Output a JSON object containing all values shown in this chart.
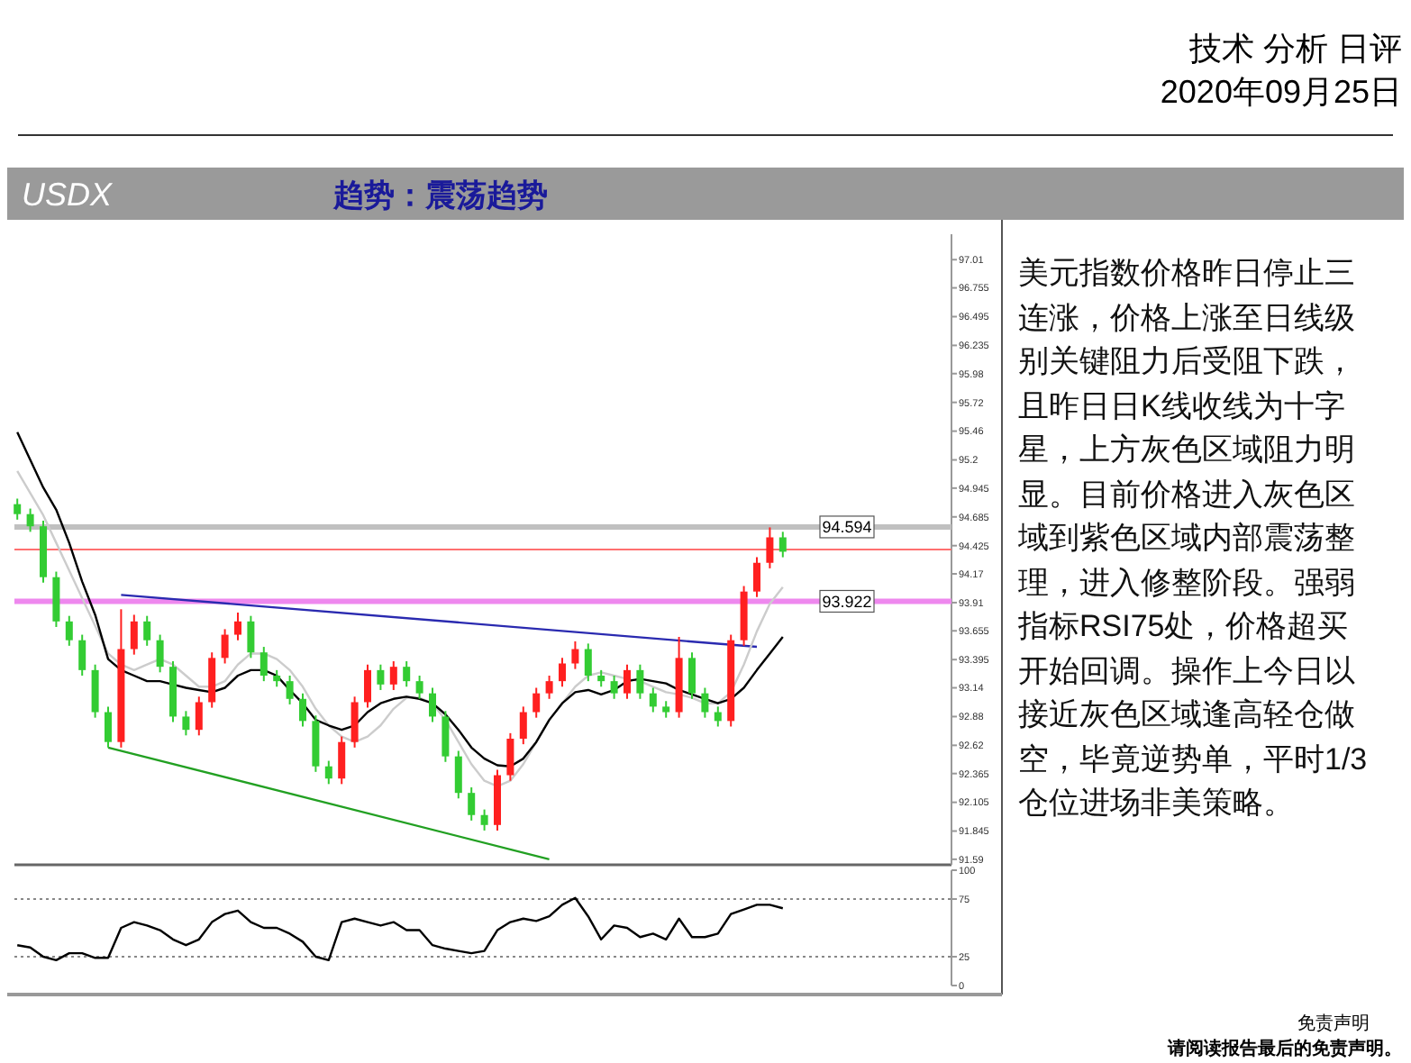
{
  "chart_data": [
    {
      "type": "candlestick",
      "title": "USDX",
      "subtitle": "趋势：震荡趋势",
      "annotations": [
        "技术 分析 日评",
        "2020年09月25日",
        "免责声明",
        "请阅读报告最后的免责声明。"
      ],
      "categories": [
        null,
        null,
        null,
        null,
        null,
        null,
        null,
        null,
        null,
        null,
        null,
        null,
        null,
        null,
        null,
        null,
        null,
        null,
        null,
        null,
        null,
        null,
        null,
        null,
        null,
        null,
        null,
        null,
        null,
        null,
        null,
        null,
        null,
        null,
        null,
        null,
        null,
        null,
        null,
        null,
        null,
        null,
        null,
        null,
        null,
        null,
        null,
        null,
        null,
        null,
        null,
        null,
        null,
        null,
        null,
        null,
        null,
        null,
        null,
        null
      ],
      "ohlc": [
        [
          94.8,
          94.85,
          94.66,
          94.71
        ],
        [
          94.71,
          94.76,
          94.55,
          94.6
        ],
        [
          94.6,
          94.65,
          94.09,
          94.14
        ],
        [
          94.14,
          94.19,
          93.69,
          93.74
        ],
        [
          93.74,
          93.79,
          93.52,
          93.57
        ],
        [
          93.57,
          93.62,
          93.25,
          93.3
        ],
        [
          93.3,
          93.35,
          92.87,
          92.92
        ],
        [
          92.92,
          92.97,
          92.6,
          92.65
        ],
        [
          92.65,
          93.85,
          92.6,
          93.49
        ],
        [
          93.49,
          93.8,
          93.44,
          93.74
        ],
        [
          93.74,
          93.79,
          93.52,
          93.57
        ],
        [
          93.57,
          93.62,
          93.28,
          93.33
        ],
        [
          93.33,
          93.38,
          92.83,
          92.88
        ],
        [
          92.88,
          92.93,
          92.71,
          92.76
        ],
        [
          92.76,
          93.06,
          92.71,
          93.01
        ],
        [
          93.01,
          93.46,
          92.96,
          93.41
        ],
        [
          93.41,
          93.67,
          93.36,
          93.62
        ],
        [
          93.62,
          93.82,
          93.57,
          93.74
        ],
        [
          93.74,
          93.79,
          93.41,
          93.46
        ],
        [
          93.46,
          93.51,
          93.2,
          93.25
        ],
        [
          93.25,
          93.3,
          93.15,
          93.2
        ],
        [
          93.2,
          93.25,
          92.99,
          93.04
        ],
        [
          93.04,
          93.09,
          92.79,
          92.84
        ],
        [
          92.84,
          92.89,
          92.38,
          92.43
        ],
        [
          92.43,
          92.48,
          92.27,
          92.32
        ],
        [
          92.32,
          92.7,
          92.27,
          92.65
        ],
        [
          92.65,
          93.06,
          92.6,
          93.01
        ],
        [
          93.01,
          93.35,
          92.96,
          93.3
        ],
        [
          93.3,
          93.35,
          93.12,
          93.17
        ],
        [
          93.17,
          93.38,
          93.12,
          93.33
        ],
        [
          93.33,
          93.38,
          93.15,
          93.2
        ],
        [
          93.2,
          93.25,
          93.04,
          93.09
        ],
        [
          93.09,
          93.14,
          92.83,
          92.88
        ],
        [
          92.88,
          92.93,
          92.47,
          92.52
        ],
        [
          92.52,
          92.57,
          92.14,
          92.19
        ],
        [
          92.19,
          92.24,
          91.94,
          91.99
        ],
        [
          91.99,
          92.04,
          91.85,
          91.9
        ],
        [
          91.9,
          92.4,
          91.85,
          92.35
        ],
        [
          92.35,
          92.73,
          92.3,
          92.68
        ],
        [
          92.68,
          92.97,
          92.63,
          92.92
        ],
        [
          92.92,
          93.14,
          92.87,
          93.09
        ],
        [
          93.09,
          93.25,
          93.04,
          93.2
        ],
        [
          93.2,
          93.41,
          93.15,
          93.36
        ],
        [
          93.36,
          93.56,
          93.31,
          93.49
        ],
        [
          93.49,
          93.54,
          93.2,
          93.25
        ],
        [
          93.25,
          93.3,
          93.15,
          93.2
        ],
        [
          93.2,
          93.25,
          93.04,
          93.09
        ],
        [
          93.09,
          93.35,
          93.04,
          93.3
        ],
        [
          93.3,
          93.35,
          93.04,
          93.09
        ],
        [
          93.09,
          93.14,
          92.92,
          92.97
        ],
        [
          92.97,
          93.02,
          92.87,
          92.92
        ],
        [
          92.92,
          93.6,
          92.87,
          93.41
        ],
        [
          93.41,
          93.46,
          93.04,
          93.09
        ],
        [
          93.09,
          93.14,
          92.87,
          92.92
        ],
        [
          92.92,
          92.97,
          92.79,
          92.84
        ],
        [
          92.84,
          93.62,
          92.79,
          93.57
        ],
        [
          93.57,
          94.06,
          93.52,
          94.01
        ],
        [
          94.01,
          94.32,
          93.96,
          94.27
        ],
        [
          94.27,
          94.59,
          94.22,
          94.5
        ],
        [
          94.5,
          94.55,
          94.32,
          94.37
        ]
      ],
      "colors": [
        "#33cc33",
        "#33cc33",
        "#33cc33",
        "#33cc33",
        "#33cc33",
        "#33cc33",
        "#33cc33",
        "#33cc33",
        "#ff2020",
        "#ff2020",
        "#33cc33",
        "#33cc33",
        "#33cc33",
        "#33cc33",
        "#ff2020",
        "#ff2020",
        "#ff2020",
        "#ff2020",
        "#33cc33",
        "#33cc33",
        "#33cc33",
        "#33cc33",
        "#33cc33",
        "#33cc33",
        "#33cc33",
        "#ff2020",
        "#ff2020",
        "#ff2020",
        "#33cc33",
        "#ff2020",
        "#33cc33",
        "#33cc33",
        "#33cc33",
        "#33cc33",
        "#33cc33",
        "#33cc33",
        "#33cc33",
        "#ff2020",
        "#ff2020",
        "#ff2020",
        "#ff2020",
        "#ff2020",
        "#ff2020",
        "#ff2020",
        "#33cc33",
        "#33cc33",
        "#33cc33",
        "#ff2020",
        "#33cc33",
        "#33cc33",
        "#33cc33",
        "#ff2020",
        "#33cc33",
        "#33cc33",
        "#33cc33",
        "#ff2020",
        "#ff2020",
        "#ff2020",
        "#ff2020",
        "#33cc33"
      ],
      "series": [
        {
          "type": "line",
          "color": "#000000",
          "values": [
            95.45,
            95.2,
            94.95,
            94.75,
            94.45,
            94.1,
            93.8,
            93.4,
            93.3,
            93.25,
            93.2,
            93.2,
            93.17,
            93.14,
            93.12,
            93.1,
            93.14,
            93.25,
            93.3,
            93.3,
            93.25,
            93.12,
            93.0,
            92.85,
            92.8,
            92.76,
            92.8,
            92.92,
            93.0,
            93.04,
            93.06,
            93.04,
            93.0,
            92.9,
            92.76,
            92.6,
            92.5,
            92.44,
            92.43,
            92.5,
            92.65,
            92.85,
            93.0,
            93.1,
            93.12,
            93.08,
            93.12,
            93.2,
            93.22,
            93.2,
            93.18,
            93.12,
            93.08,
            93.04,
            93.0,
            93.04,
            93.14,
            93.3,
            93.45,
            93.6
          ]
        },
        {
          "type": "line",
          "color": "#cccccc",
          "values": [
            95.1,
            94.9,
            94.7,
            94.45,
            94.2,
            93.95,
            93.7,
            93.45,
            93.35,
            93.3,
            93.35,
            93.4,
            93.35,
            93.25,
            93.15,
            93.15,
            93.2,
            93.35,
            93.45,
            93.45,
            93.4,
            93.3,
            93.15,
            92.95,
            92.8,
            92.7,
            92.65,
            92.7,
            92.8,
            92.95,
            93.05,
            93.05,
            93.0,
            92.85,
            92.65,
            92.45,
            92.3,
            92.25,
            92.3,
            92.45,
            92.65,
            92.85,
            93.0,
            93.15,
            93.25,
            93.28,
            93.25,
            93.22,
            93.2,
            93.15,
            93.1,
            93.08,
            93.05,
            93.0,
            93.0,
            93.1,
            93.35,
            93.65,
            93.9,
            94.05
          ]
        },
        {
          "type": "line",
          "color": "#2a2ab0",
          "values": [
            null,
            null,
            null,
            null,
            null,
            null,
            null,
            null,
            93.98,
            null,
            null,
            null,
            null,
            null,
            null,
            null,
            null,
            null,
            null,
            null,
            null,
            null,
            null,
            null,
            null,
            null,
            null,
            null,
            null,
            null,
            null,
            null,
            null,
            null,
            null,
            null,
            null,
            null,
            null,
            null,
            null,
            null,
            null,
            null,
            null,
            null,
            null,
            null,
            null,
            null,
            null,
            null,
            null,
            null,
            null,
            null,
            null,
            93.51,
            null,
            null
          ]
        },
        {
          "type": "line",
          "color": "#22a022",
          "values": [
            null,
            null,
            null,
            null,
            null,
            null,
            null,
            92.6,
            null,
            null,
            null,
            null,
            null,
            null,
            null,
            null,
            null,
            null,
            null,
            null,
            null,
            null,
            null,
            null,
            null,
            null,
            null,
            null,
            null,
            null,
            null,
            null,
            null,
            null,
            null,
            null,
            null,
            null,
            null,
            null,
            null,
            91.59,
            null,
            null,
            null,
            null,
            null,
            null,
            null,
            null,
            null,
            null,
            null,
            null,
            null,
            null,
            null,
            null,
            null,
            null
          ]
        }
      ],
      "ref_lines": [
        {
          "axis": "y",
          "value": 94.594,
          "label": "94.594",
          "color": "#c0c0c0"
        },
        {
          "axis": "y",
          "value": 93.922,
          "label": "93.922",
          "color": "#ee88ee"
        },
        {
          "axis": "y",
          "value": 94.39,
          "color": "#ff7070"
        }
      ],
      "ylim": [
        91.54,
        97.24
      ],
      "yticks": [
        91.59,
        91.845,
        92.105,
        92.365,
        92.62,
        92.88,
        93.14,
        93.395,
        93.655,
        93.91,
        94.17,
        94.425,
        94.685,
        94.945,
        95.2,
        95.46,
        95.72,
        95.98,
        96.235,
        96.495,
        96.755,
        97.01
      ],
      "tick_labels": "y"
    },
    {
      "type": "line",
      "categories": [
        null,
        null,
        null,
        null,
        null,
        null,
        null,
        null,
        null,
        null,
        null,
        null,
        null,
        null,
        null,
        null,
        null,
        null,
        null,
        null,
        null,
        null,
        null,
        null,
        null,
        null,
        null,
        null,
        null,
        null,
        null,
        null,
        null,
        null,
        null,
        null,
        null,
        null,
        null,
        null,
        null,
        null,
        null,
        null,
        null,
        null,
        null,
        null,
        null,
        null,
        null,
        null,
        null,
        null,
        null,
        null,
        null,
        null,
        null,
        null
      ],
      "series": [
        {
          "color": "#000000",
          "values": [
            35,
            33,
            25,
            22,
            28,
            28,
            24,
            24,
            50,
            55,
            52,
            48,
            40,
            35,
            40,
            55,
            62,
            65,
            55,
            50,
            50,
            45,
            38,
            25,
            22,
            55,
            58,
            55,
            52,
            55,
            48,
            48,
            35,
            32,
            30,
            28,
            30,
            48,
            55,
            58,
            56,
            60,
            70,
            76,
            60,
            40,
            52,
            50,
            42,
            45,
            40,
            58,
            42,
            42,
            45,
            62,
            66,
            70,
            70,
            67
          ]
        }
      ],
      "ref_lines": [
        {
          "axis": "y",
          "value": 75,
          "color": "#888888",
          "line_style": "dotted"
        },
        {
          "axis": "y",
          "value": 25,
          "color": "#888888",
          "line_style": "dotted"
        }
      ],
      "ylim": [
        0,
        100
      ],
      "yticks": [
        0,
        25,
        75,
        100
      ],
      "tick_labels": "y"
    },
    {
      "type": "other",
      "annotations": [
        "美元指数价格昨日停止三连涨，价格上涨至日线级别关键阻力后受阻下跌，且昨日日K线收线为十字星，上方灰色区域阻力明显。目前价格进入灰色区域到紫色区域内部震荡整理，进入修整阶段。强弱指标RSI75处，价格超买开始回调。操作上今日以接近灰色区域逢高轻仓做空，毕竟逆势单，平时1/3仓位进场非美策略。"
      ]
    }
  ]
}
